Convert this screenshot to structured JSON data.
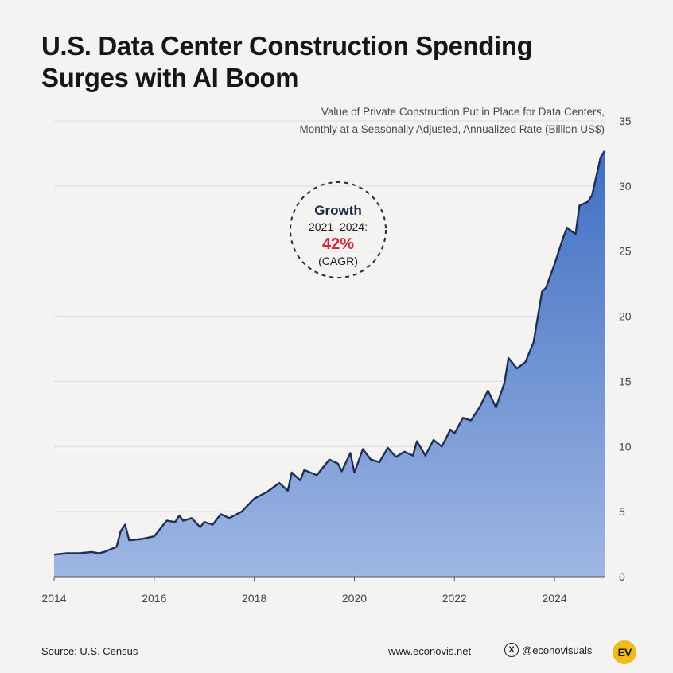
{
  "header": {
    "title_line1": "U.S. Data Center Construction Spending",
    "title_line2": "Surges with AI Boom",
    "subtitle_line1": "Value of Private Construction Put in Place for Data Centers,",
    "subtitle_line2": "Monthly at a Seasonally Adjusted, Annualized Rate (Billion US$)"
  },
  "annotation": {
    "heading": "Growth",
    "period": "2021–2024:",
    "value": "42%",
    "note": "(CAGR)"
  },
  "footer": {
    "source": "Source: U.S. Census",
    "website": "www.econovis.net",
    "social_icon": "X",
    "social": "@econovisuals",
    "logo": "EV"
  },
  "colors": {
    "line": "#1f2f55",
    "area_top": "#3f6fc2",
    "area_bottom": "#9fb6e3",
    "grid": "#dcdcdc",
    "accent": "#d62638"
  },
  "chart_data": {
    "type": "area",
    "title": "U.S. Data Center Construction Spending Surges with AI Boom",
    "ylabel": "Billion US$ (SAAR)",
    "xlabel": "",
    "xlim": [
      2014,
      2025
    ],
    "ylim": [
      0,
      35
    ],
    "y_ticks": [
      0,
      5,
      10,
      15,
      20,
      25,
      30,
      35
    ],
    "x_ticks": [
      2014,
      2016,
      2018,
      2020,
      2022,
      2024
    ],
    "grid": true,
    "x": [
      2014.0,
      2014.25,
      2014.5,
      2014.75,
      2014.9,
      2015.0,
      2015.25,
      2015.33,
      2015.42,
      2015.5,
      2015.75,
      2016.0,
      2016.25,
      2016.42,
      2016.5,
      2016.58,
      2016.75,
      2016.92,
      2017.0,
      2017.17,
      2017.33,
      2017.5,
      2017.75,
      2018.0,
      2018.25,
      2018.5,
      2018.67,
      2018.75,
      2018.92,
      2019.0,
      2019.25,
      2019.5,
      2019.67,
      2019.75,
      2019.92,
      2020.0,
      2020.17,
      2020.33,
      2020.5,
      2020.67,
      2020.83,
      2021.0,
      2021.17,
      2021.25,
      2021.42,
      2021.58,
      2021.75,
      2021.92,
      2022.0,
      2022.17,
      2022.33,
      2022.5,
      2022.67,
      2022.83,
      2023.0,
      2023.08,
      2023.25,
      2023.42,
      2023.58,
      2023.75,
      2023.83,
      2024.0,
      2024.17,
      2024.25,
      2024.42,
      2024.5,
      2024.67,
      2024.75,
      2024.92,
      2025.0
    ],
    "values": [
      1.7,
      1.8,
      1.8,
      1.9,
      1.8,
      1.9,
      2.3,
      3.5,
      4.0,
      2.8,
      2.9,
      3.1,
      4.3,
      4.2,
      4.7,
      4.3,
      4.5,
      3.8,
      4.2,
      4.0,
      4.8,
      4.5,
      5.0,
      6.0,
      6.5,
      7.2,
      6.6,
      8.0,
      7.4,
      8.2,
      7.8,
      9.0,
      8.7,
      8.1,
      9.5,
      8.0,
      9.8,
      9.0,
      8.8,
      9.9,
      9.2,
      9.6,
      9.3,
      10.4,
      9.3,
      10.5,
      10.0,
      11.3,
      11.0,
      12.2,
      12.0,
      13.0,
      14.3,
      13.0,
      14.9,
      16.8,
      16.0,
      16.5,
      18.0,
      21.9,
      22.2,
      24.0,
      26.0,
      26.8,
      26.3,
      28.5,
      28.8,
      29.3,
      32.2,
      32.7
    ]
  }
}
